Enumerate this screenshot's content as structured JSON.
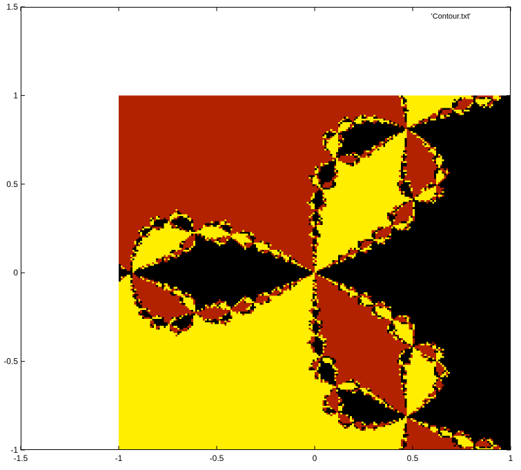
{
  "chart_data": {
    "type": "heatmap",
    "title": "",
    "xlabel": "",
    "ylabel": "",
    "xlim": [
      -1.5,
      1
    ],
    "ylim": [
      -1,
      1.5
    ],
    "x_ticks": [
      {
        "value": -1.5,
        "label": "-1.5"
      },
      {
        "value": -1,
        "label": "-1"
      },
      {
        "value": -0.5,
        "label": "-0.5"
      },
      {
        "value": 0,
        "label": "0"
      },
      {
        "value": 0.5,
        "label": "0.5"
      },
      {
        "value": 1,
        "label": "1"
      }
    ],
    "y_ticks": [
      {
        "value": -1,
        "label": "-1"
      },
      {
        "value": -0.5,
        "label": "-0.5"
      },
      {
        "value": 0,
        "label": "0"
      },
      {
        "value": 0.5,
        "label": "0.5"
      },
      {
        "value": 1,
        "label": "1"
      },
      {
        "value": 1.5,
        "label": "1.5"
      }
    ],
    "legend": {
      "label": "'Contour.txt'",
      "position": "top-right"
    },
    "data_extent": {
      "x": [
        -1,
        1
      ],
      "y": [
        -1,
        1
      ]
    },
    "palette": [
      "#000000",
      "#b22200",
      "#ffee00"
    ],
    "grid": false,
    "basins": [
      {
        "name": "black",
        "color": "#000000",
        "center": [
          0.4,
          0.0
        ]
      },
      {
        "name": "red",
        "color": "#b22200",
        "center": [
          -0.2,
          0.35
        ]
      },
      {
        "name": "yellow",
        "color": "#ffee00",
        "center": [
          -0.2,
          -0.35
        ]
      }
    ]
  }
}
